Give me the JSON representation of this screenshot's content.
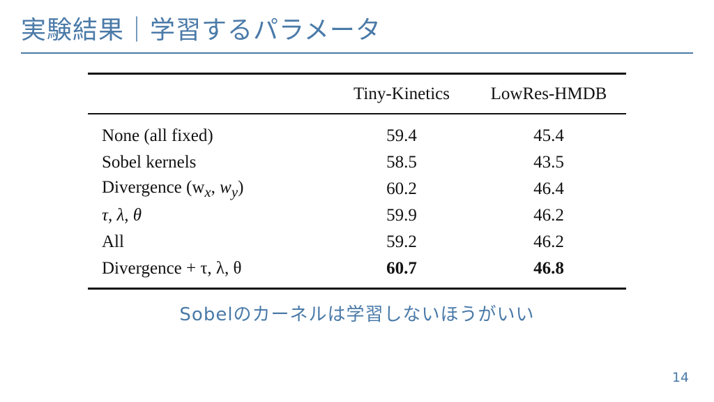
{
  "slide": {
    "title": "実験結果｜学習するパラメータ",
    "caption": "Sobelのカーネルは学習しないほうがいい",
    "page_number": "14"
  },
  "table": {
    "headers": [
      "",
      "Tiny-Kinetics",
      "LowRes-HMDB"
    ],
    "rows": [
      {
        "method": "None (all fixed)",
        "tiny_kinetics": "59.4",
        "lowres_hmdb": "45.4"
      },
      {
        "method": "Sobel kernels",
        "tiny_kinetics": "58.5",
        "lowres_hmdb": "43.5"
      },
      {
        "method": "Divergence (w",
        "tiny_kinetics": "60.2",
        "lowres_hmdb": "46.4"
      },
      {
        "method": "τ, λ, θ",
        "tiny_kinetics": "59.9",
        "lowres_hmdb": "46.2"
      },
      {
        "method": "All",
        "tiny_kinetics": "59.2",
        "lowres_hmdb": "46.2"
      },
      {
        "method": "Divergence + τ, λ, θ",
        "tiny_kinetics": "60.7",
        "lowres_hmdb": "46.8"
      }
    ],
    "divergence_math": {
      "w": "w",
      "x": "x",
      "y": "y",
      "comma": ", ",
      "close": ")"
    }
  },
  "colors": {
    "accent": "#4a7aa8",
    "text": "#111111"
  }
}
